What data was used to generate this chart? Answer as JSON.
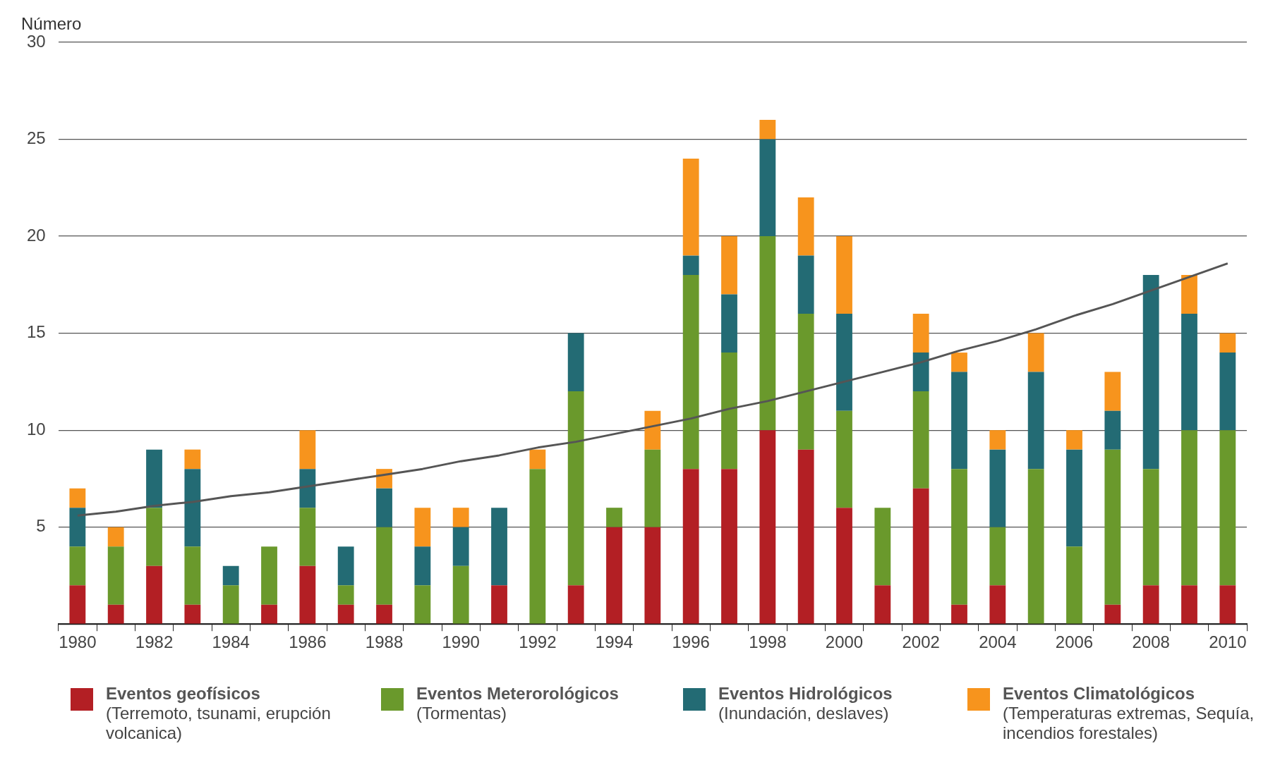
{
  "chart_data": {
    "type": "bar",
    "stacked": true,
    "ylabel": "Número",
    "categories": [
      "1980",
      null,
      "1982",
      null,
      "1984",
      null,
      "1986",
      null,
      "1988",
      null,
      "1990",
      null,
      "1992",
      null,
      "1994",
      null,
      "1996",
      null,
      "1998",
      null,
      "2000",
      null,
      "2002",
      null,
      "2004",
      null,
      "2006",
      null,
      "2008",
      null,
      "2010"
    ],
    "series": [
      {
        "name": "Eventos geofísicos (Terremoto, tsunami, erupción volcanica)",
        "color": "#b31f24",
        "values": [
          2,
          1,
          3,
          1,
          0,
          1,
          3,
          1,
          1,
          0,
          0,
          2,
          0,
          2,
          5,
          5,
          8,
          8,
          10,
          9,
          6,
          2,
          7,
          1,
          2,
          0,
          0,
          1,
          2,
          2,
          2
        ]
      },
      {
        "name": "Eventos Meterorológicos (Tormentas)",
        "color": "#6a992c",
        "values": [
          2,
          3,
          3,
          3,
          2,
          3,
          3,
          1,
          4,
          2,
          3,
          0,
          8,
          10,
          1,
          4,
          10,
          6,
          10,
          7,
          5,
          4,
          5,
          7,
          3,
          8,
          4,
          8,
          6,
          8,
          8
        ]
      },
      {
        "name": "Eventos Hidrológicos (Inundación, deslaves)",
        "color": "#236b74",
        "values": [
          2,
          0,
          3,
          4,
          1,
          0,
          2,
          2,
          2,
          2,
          2,
          4,
          0,
          3,
          0,
          0,
          1,
          3,
          5,
          3,
          5,
          0,
          2,
          5,
          4,
          5,
          5,
          2,
          10,
          6,
          4
        ]
      },
      {
        "name": "Eventos Climatológicos (Temperaturas extremas, Sequía, incendios forestales)",
        "color": "#f7941d",
        "values": [
          1,
          1,
          0,
          1,
          0,
          0,
          2,
          0,
          1,
          2,
          1,
          0,
          1,
          0,
          0,
          2,
          5,
          3,
          1,
          3,
          4,
          0,
          2,
          1,
          1,
          2,
          1,
          2,
          0,
          2,
          1
        ]
      },
      {
        "type": "line",
        "color": "#555555",
        "values": [
          5.6,
          5.8,
          6.1,
          6.3,
          6.6,
          6.8,
          7.1,
          7.4,
          7.7,
          8.0,
          8.4,
          8.7,
          9.1,
          9.4,
          9.8,
          10.2,
          10.6,
          11.1,
          11.5,
          12.0,
          12.5,
          13.0,
          13.5,
          14.1,
          14.6,
          15.2,
          15.9,
          16.5,
          17.2,
          17.9,
          18.6
        ]
      }
    ],
    "ylim": [
      0,
      30
    ],
    "yticks": [
      {
        "value": 0,
        "label": null
      },
      5,
      10,
      15,
      20,
      25,
      30
    ],
    "grid": "y",
    "legend": "bottom",
    "marker": "none"
  }
}
